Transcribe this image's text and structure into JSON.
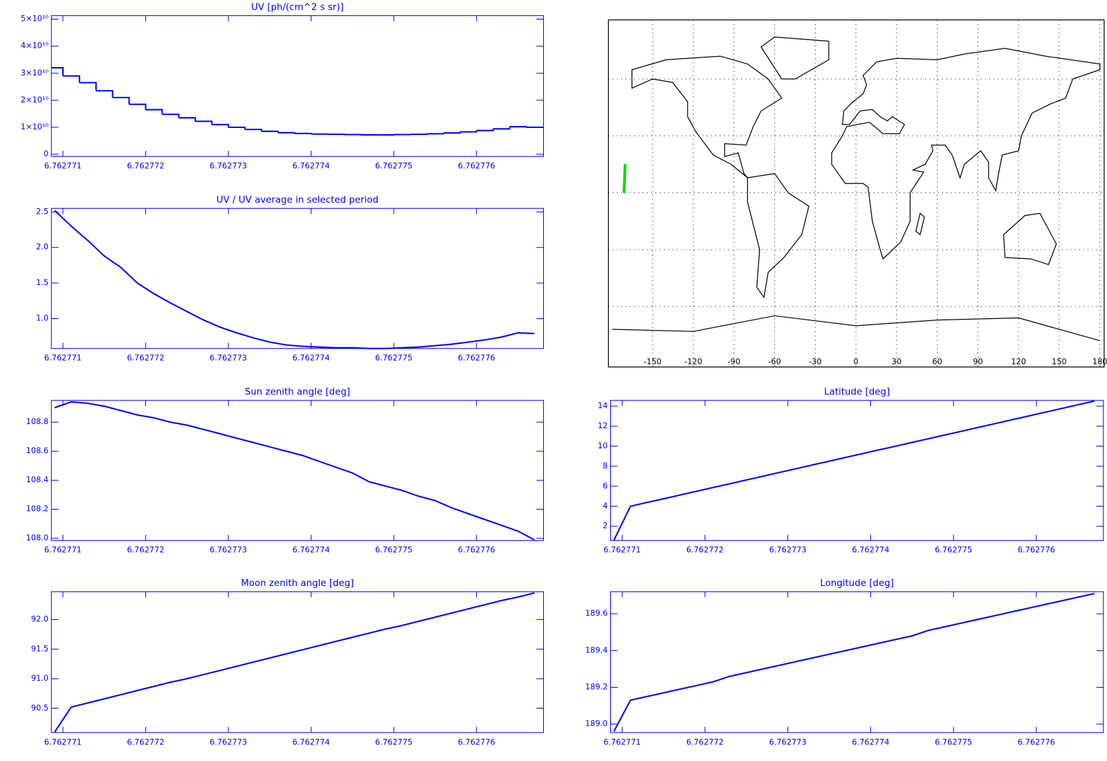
{
  "chart_data": [
    {
      "type": "step",
      "title": "UV [ph/(cm^2 s sr)]",
      "color": "#0000ff",
      "x": [
        6.7627709,
        6.7627711,
        6.7627713,
        6.7627715,
        6.7627717,
        6.7627719,
        6.7627721,
        6.7627723,
        6.7627725,
        6.7627727,
        6.7627729,
        6.7627731,
        6.7627733,
        6.7627735,
        6.7627737,
        6.7627739,
        6.7627741,
        6.7627743,
        6.7627745,
        6.7627747,
        6.7627749,
        6.7627751,
        6.7627753,
        6.7627755,
        6.7627757,
        6.7627759,
        6.7627761,
        6.7627763,
        6.7627765,
        6.7627767
      ],
      "values": [
        32000000000,
        29000000000,
        26500000000,
        23500000000,
        21000000000,
        18500000000,
        16500000000,
        14800000000,
        13500000000,
        12200000000,
        11000000000,
        10000000000,
        9200000000,
        8500000000,
        8000000000,
        7700000000,
        7500000000,
        7400000000,
        7300000000,
        7200000000,
        7200000000,
        7300000000,
        7400000000,
        7600000000,
        7900000000,
        8300000000,
        8800000000,
        9400000000,
        10200000000,
        10000000000
      ],
      "xlim": [
        6.76277086,
        6.76277681
      ],
      "ylim": [
        -800000000,
        51300000000
      ],
      "xticks": [
        6.762771,
        6.762772,
        6.762773,
        6.762774,
        6.762775,
        6.762776
      ],
      "yticks": [
        0,
        {
          "value": 10000000000,
          "label": "1×10¹⁰"
        },
        {
          "value": 20000000000,
          "label": "2×10¹⁰"
        },
        {
          "value": 30000000000,
          "label": "3×10¹⁰"
        },
        {
          "value": 40000000000,
          "label": "4×10¹⁰"
        },
        {
          "value": 50000000000,
          "label": "5×10¹⁰"
        }
      ]
    },
    {
      "type": "line",
      "title": "UV / UV average in selected period",
      "color": "#0000ff",
      "x": [
        6.7627709,
        6.7627711,
        6.7627713,
        6.7627715,
        6.7627717,
        6.7627719,
        6.7627721,
        6.7627723,
        6.7627725,
        6.7627727,
        6.7627729,
        6.7627731,
        6.7627733,
        6.7627735,
        6.7627737,
        6.7627739,
        6.7627741,
        6.7627743,
        6.7627745,
        6.7627747,
        6.7627749,
        6.7627751,
        6.7627753,
        6.7627755,
        6.7627757,
        6.7627759,
        6.7627761,
        6.7627763,
        6.7627765,
        6.7627767
      ],
      "values": [
        2.52,
        2.3,
        2.1,
        1.88,
        1.72,
        1.5,
        1.35,
        1.22,
        1.1,
        0.98,
        0.88,
        0.8,
        0.73,
        0.67,
        0.63,
        0.61,
        0.6,
        0.59,
        0.59,
        0.58,
        0.58,
        0.59,
        0.6,
        0.62,
        0.64,
        0.67,
        0.7,
        0.74,
        0.8,
        0.79
      ],
      "xlim": [
        6.76277086,
        6.76277681
      ],
      "ylim": [
        0.58,
        2.55
      ],
      "xticks": [
        6.762771,
        6.762772,
        6.762773,
        6.762774,
        6.762775,
        6.762776
      ],
      "yticks": [
        {
          "value": 1,
          "label": "1.0"
        },
        1.5,
        {
          "value": 2,
          "label": "2.0"
        },
        2.5
      ]
    },
    {
      "type": "line",
      "title": "Sun zenith angle [deg]",
      "color": "#0000ff",
      "x": [
        6.7627709,
        6.7627711,
        6.7627713,
        6.7627715,
        6.7627717,
        6.7627719,
        6.7627721,
        6.7627723,
        6.7627725,
        6.7627727,
        6.7627729,
        6.7627731,
        6.7627733,
        6.7627735,
        6.7627737,
        6.7627739,
        6.7627741,
        6.7627743,
        6.7627745,
        6.7627747,
        6.7627749,
        6.7627751,
        6.7627753,
        6.7627755,
        6.7627757,
        6.7627759,
        6.7627761,
        6.7627763,
        6.7627765,
        6.7627767
      ],
      "values": [
        108.9,
        108.94,
        108.93,
        108.91,
        108.88,
        108.85,
        108.83,
        108.8,
        108.78,
        108.75,
        108.72,
        108.69,
        108.66,
        108.63,
        108.6,
        108.57,
        108.53,
        108.49,
        108.45,
        108.39,
        108.36,
        108.33,
        108.29,
        108.26,
        108.21,
        108.17,
        108.13,
        108.09,
        108.05,
        107.99
      ],
      "xlim": [
        6.76277086,
        6.76277681
      ],
      "ylim": [
        107.985,
        108.95
      ],
      "xticks": [
        6.762771,
        6.762772,
        6.762773,
        6.762774,
        6.762775,
        6.762776
      ],
      "yticks": [
        {
          "value": 108,
          "label": "108.0"
        },
        108.2,
        108.4,
        108.6,
        108.8
      ]
    },
    {
      "type": "line",
      "title": "Moon zenith angle [deg]",
      "color": "#0000ff",
      "x": [
        6.7627709,
        6.7627711,
        6.7627713,
        6.7627715,
        6.7627717,
        6.7627719,
        6.7627721,
        6.7627723,
        6.7627725,
        6.7627727,
        6.7627729,
        6.7627731,
        6.7627733,
        6.7627735,
        6.7627737,
        6.7627739,
        6.7627741,
        6.7627743,
        6.7627745,
        6.7627747,
        6.7627749,
        6.7627751,
        6.7627753,
        6.7627755,
        6.7627757,
        6.7627759,
        6.7627761,
        6.7627763,
        6.7627765,
        6.7627767
      ],
      "values": [
        90.1,
        90.52,
        90.59,
        90.66,
        90.73,
        90.8,
        90.87,
        90.94,
        91.0,
        91.07,
        91.14,
        91.21,
        91.28,
        91.35,
        91.42,
        91.49,
        91.56,
        91.63,
        91.7,
        91.77,
        91.84,
        91.9,
        91.97,
        92.04,
        92.11,
        92.18,
        92.25,
        92.32,
        92.38,
        92.45
      ],
      "xlim": [
        6.76277086,
        6.76277681
      ],
      "ylim": [
        90.09,
        92.47
      ],
      "xticks": [
        6.762771,
        6.762772,
        6.762773,
        6.762774,
        6.762775,
        6.762776
      ],
      "yticks": [
        90.5,
        {
          "value": 91,
          "label": "91.0"
        },
        91.5,
        {
          "value": 92,
          "label": "92.0"
        }
      ]
    },
    {
      "type": "line",
      "title": "Latitude [deg]",
      "color": "#0000ff",
      "x": [
        6.7627709,
        6.7627711,
        6.7627713,
        6.7627715,
        6.7627717,
        6.7627719,
        6.7627721,
        6.7627723,
        6.7627725,
        6.7627727,
        6.7627729,
        6.7627731,
        6.7627733,
        6.7627735,
        6.7627737,
        6.7627739,
        6.7627741,
        6.7627743,
        6.7627745,
        6.7627747,
        6.7627749,
        6.7627751,
        6.7627753,
        6.7627755,
        6.7627757,
        6.7627759,
        6.7627761,
        6.7627763,
        6.7627765,
        6.7627767
      ],
      "values": [
        0.6,
        4.0,
        4.38,
        4.75,
        5.13,
        5.5,
        5.88,
        6.25,
        6.63,
        7.0,
        7.38,
        7.75,
        8.13,
        8.5,
        8.88,
        9.25,
        9.63,
        10.0,
        10.38,
        10.75,
        11.13,
        11.5,
        11.88,
        12.25,
        12.63,
        13.0,
        13.38,
        13.75,
        14.13,
        14.5
      ],
      "xlim": [
        6.76277086,
        6.76277681
      ],
      "ylim": [
        0.58,
        14.57
      ],
      "xticks": [
        6.762771,
        6.762772,
        6.762773,
        6.762774,
        6.762775,
        6.762776
      ],
      "yticks": [
        2,
        4,
        6,
        8,
        10,
        12,
        14
      ]
    },
    {
      "type": "line",
      "title": "Longitude [deg]",
      "color": "#0000ff",
      "x": [
        6.7627709,
        6.7627711,
        6.7627713,
        6.7627715,
        6.7627717,
        6.7627719,
        6.7627721,
        6.7627723,
        6.7627725,
        6.7627727,
        6.7627729,
        6.7627731,
        6.7627733,
        6.7627735,
        6.7627737,
        6.7627739,
        6.7627741,
        6.7627743,
        6.7627745,
        6.7627747,
        6.7627749,
        6.7627751,
        6.7627753,
        6.7627755,
        6.7627757,
        6.7627759,
        6.7627761,
        6.7627763,
        6.7627765,
        6.7627767
      ],
      "values": [
        188.96,
        189.13,
        189.15,
        189.17,
        189.19,
        189.21,
        189.23,
        189.26,
        189.28,
        189.3,
        189.32,
        189.34,
        189.36,
        189.38,
        189.4,
        189.42,
        189.44,
        189.46,
        189.48,
        189.51,
        189.53,
        189.55,
        189.57,
        189.59,
        189.61,
        189.63,
        189.65,
        189.67,
        189.69,
        189.71
      ],
      "xlim": [
        6.76277086,
        6.76277681
      ],
      "ylim": [
        188.954,
        189.72
      ],
      "xticks": [
        6.762771,
        6.762772,
        6.762773,
        6.762774,
        6.762775,
        6.762776
      ],
      "yticks": [
        {
          "value": 189,
          "label": "189.0"
        },
        189.2,
        189.4,
        189.6
      ]
    },
    {
      "type": "map",
      "color": "#00dd00",
      "grid": true,
      "lon": [
        -171.04,
        -170.87,
        -170.7,
        -170.5,
        -170.29
      ],
      "lat": [
        0.6,
        4.0,
        7.38,
        10.75,
        14.5
      ],
      "xlim": [
        -180,
        180
      ],
      "ylim": [
        -90,
        90
      ],
      "xticks": [
        -150,
        -120,
        -90,
        -60,
        -30,
        0,
        30,
        60,
        90,
        120,
        150,
        180
      ],
      "lat_grid": [
        -60,
        -30,
        0,
        30,
        60
      ]
    }
  ]
}
